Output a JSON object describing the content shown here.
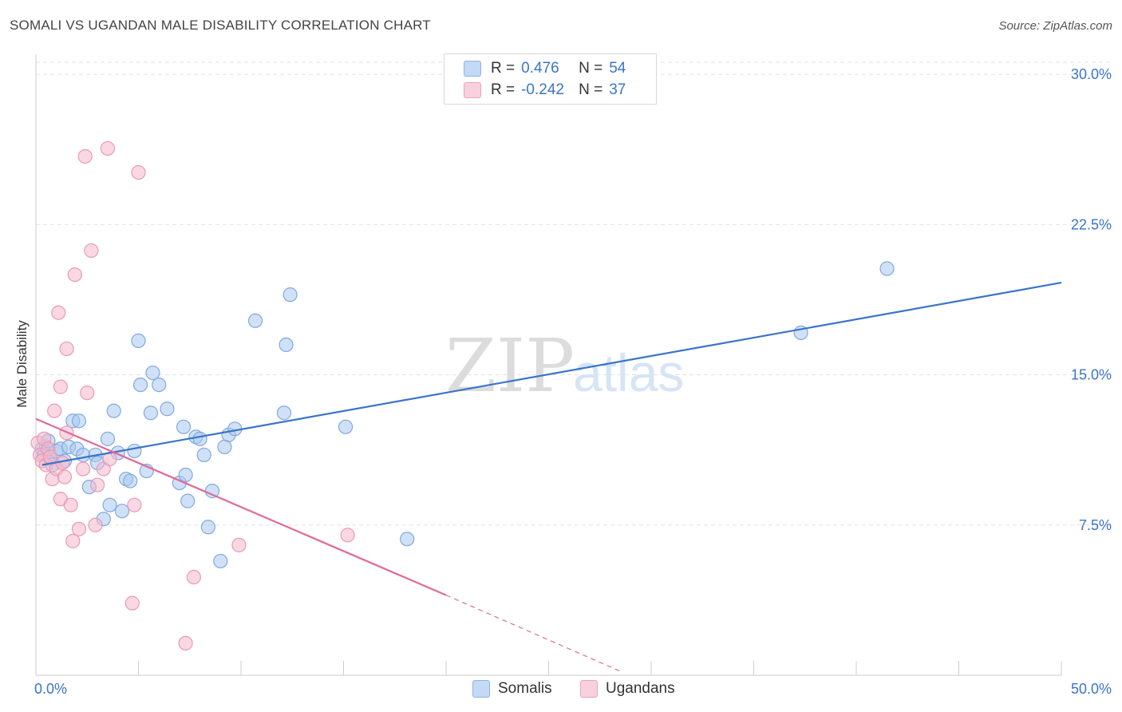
{
  "title": "SOMALI VS UGANDAN MALE DISABILITY CORRELATION CHART",
  "source": "Source: ZipAtlas.com",
  "watermark": {
    "zip": "ZIP",
    "atlas": "atlas"
  },
  "legend": {
    "rows": [
      {
        "r_label": "R =",
        "r_value": "0.476",
        "n_label": "N =",
        "n_value": "54",
        "color": "#a9c9f0"
      },
      {
        "r_label": "R =",
        "r_value": "-0.242",
        "n_label": "N =",
        "n_value": "37",
        "color": "#f5b8cc"
      }
    ]
  },
  "bottom_legend": [
    "Somalis",
    "Ugandans"
  ],
  "chart_data": {
    "type": "scatter",
    "title": "SOMALI VS UGANDAN MALE DISABILITY CORRELATION CHART",
    "xlabel": "",
    "ylabel": "Male Disability",
    "xlim": [
      0,
      50
    ],
    "ylim": [
      0,
      31
    ],
    "x_tick_labels": [
      "0.0%",
      "50.0%"
    ],
    "y_ticks": [
      7.5,
      15.0,
      22.5,
      30.0
    ],
    "y_tick_labels": [
      "7.5%",
      "15.0%",
      "22.5%",
      "30.0%"
    ],
    "grid": true,
    "colors": {
      "blue": "#3a74c9",
      "pink": "#e06b96",
      "blue_fill": "#a9c9f0",
      "pink_fill": "#f5b8cc"
    },
    "series": [
      {
        "name": "Somalis",
        "r": 0.476,
        "n": 54,
        "trend": {
          "x": [
            0.3,
            50
          ],
          "y": [
            10.5,
            19.6
          ]
        },
        "points": [
          [
            0.3,
            11.3
          ],
          [
            0.4,
            11.0
          ],
          [
            0.5,
            11.4
          ],
          [
            0.6,
            11.7
          ],
          [
            0.7,
            10.8
          ],
          [
            0.8,
            10.5
          ],
          [
            1.0,
            11.2
          ],
          [
            1.2,
            11.3
          ],
          [
            1.4,
            10.7
          ],
          [
            1.6,
            11.4
          ],
          [
            1.8,
            12.7
          ],
          [
            2.0,
            11.3
          ],
          [
            2.1,
            12.7
          ],
          [
            2.3,
            11.0
          ],
          [
            2.6,
            9.4
          ],
          [
            2.9,
            11.0
          ],
          [
            3.0,
            10.6
          ],
          [
            3.3,
            7.8
          ],
          [
            3.5,
            11.8
          ],
          [
            3.6,
            8.5
          ],
          [
            3.8,
            13.2
          ],
          [
            4.0,
            11.1
          ],
          [
            4.2,
            8.2
          ],
          [
            4.4,
            9.8
          ],
          [
            4.6,
            9.7
          ],
          [
            4.8,
            11.2
          ],
          [
            5.0,
            16.7
          ],
          [
            5.1,
            14.5
          ],
          [
            5.4,
            10.2
          ],
          [
            5.6,
            13.1
          ],
          [
            5.7,
            15.1
          ],
          [
            6.0,
            14.5
          ],
          [
            6.4,
            13.3
          ],
          [
            7.0,
            9.6
          ],
          [
            7.2,
            12.4
          ],
          [
            7.3,
            10.0
          ],
          [
            7.4,
            8.7
          ],
          [
            7.8,
            11.9
          ],
          [
            8.0,
            11.8
          ],
          [
            8.2,
            11.0
          ],
          [
            8.4,
            7.4
          ],
          [
            8.6,
            9.2
          ],
          [
            9.0,
            5.7
          ],
          [
            9.2,
            11.4
          ],
          [
            9.4,
            12.0
          ],
          [
            9.7,
            12.3
          ],
          [
            10.7,
            17.7
          ],
          [
            12.1,
            13.1
          ],
          [
            12.2,
            16.5
          ],
          [
            12.4,
            19.0
          ],
          [
            15.1,
            12.4
          ],
          [
            18.1,
            6.8
          ],
          [
            37.3,
            17.1
          ],
          [
            41.5,
            20.3
          ]
        ]
      },
      {
        "name": "Ugandans",
        "r": -0.242,
        "n": 37,
        "trend": {
          "x": [
            0.0,
            20.0
          ],
          "y": [
            12.8,
            4.0
          ]
        },
        "trend_dashed": {
          "x": [
            20.0,
            28.5
          ],
          "y": [
            4.0,
            0.2
          ]
        },
        "points": [
          [
            0.1,
            11.6
          ],
          [
            0.2,
            11.0
          ],
          [
            0.3,
            10.7
          ],
          [
            0.4,
            11.8
          ],
          [
            0.5,
            10.5
          ],
          [
            0.6,
            11.3
          ],
          [
            0.7,
            10.9
          ],
          [
            0.8,
            9.8
          ],
          [
            0.9,
            13.2
          ],
          [
            1.0,
            10.3
          ],
          [
            1.1,
            18.1
          ],
          [
            1.2,
            8.8
          ],
          [
            1.2,
            14.4
          ],
          [
            1.4,
            9.9
          ],
          [
            1.3,
            10.6
          ],
          [
            1.5,
            12.1
          ],
          [
            1.5,
            16.3
          ],
          [
            1.7,
            8.5
          ],
          [
            1.8,
            6.7
          ],
          [
            1.9,
            20.0
          ],
          [
            2.1,
            7.3
          ],
          [
            2.3,
            10.3
          ],
          [
            2.4,
            25.9
          ],
          [
            2.5,
            14.1
          ],
          [
            2.7,
            21.2
          ],
          [
            2.9,
            7.5
          ],
          [
            3.0,
            9.5
          ],
          [
            3.3,
            10.3
          ],
          [
            3.5,
            26.3
          ],
          [
            3.6,
            10.8
          ],
          [
            4.7,
            3.6
          ],
          [
            4.8,
            8.5
          ],
          [
            5.0,
            25.1
          ],
          [
            7.3,
            1.6
          ],
          [
            7.7,
            4.9
          ],
          [
            9.9,
            6.5
          ],
          [
            15.2,
            7.0
          ]
        ]
      }
    ]
  }
}
